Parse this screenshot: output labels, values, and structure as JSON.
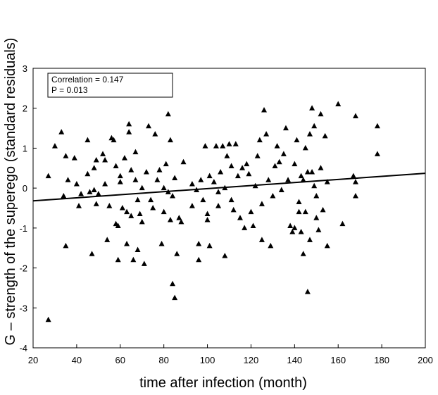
{
  "chart_data": {
    "type": "scatter",
    "xlabel": "time after infection (month)",
    "ylabel": "G – strength of the superego (standard residuals)",
    "xlim": [
      20,
      200
    ],
    "ylim": [
      -4,
      3
    ],
    "x_ticks": [
      "20",
      "40",
      "60",
      "80",
      "100",
      "120",
      "140",
      "160",
      "180",
      "200"
    ],
    "y_ticks": [
      "-4",
      "-3",
      "-2",
      "-1",
      "0",
      "1",
      "2",
      "3"
    ],
    "grid": false,
    "marker": "triangle",
    "marker_color": "#000000",
    "annotation": {
      "line1": "Correlation = 0.147",
      "line2": "P = 0.013",
      "position": "top-left"
    },
    "fit_line": {
      "x": [
        20,
        200
      ],
      "y": [
        -0.32,
        0.37
      ]
    },
    "points": [
      {
        "x": 27,
        "y": 0.3
      },
      {
        "x": 27,
        "y": -3.3
      },
      {
        "x": 30,
        "y": 1.05
      },
      {
        "x": 33,
        "y": 1.4
      },
      {
        "x": 34,
        "y": -0.2
      },
      {
        "x": 35,
        "y": 0.8
      },
      {
        "x": 35,
        "y": -1.45
      },
      {
        "x": 36,
        "y": 0.2
      },
      {
        "x": 39,
        "y": 0.75
      },
      {
        "x": 40,
        "y": 0.1
      },
      {
        "x": 41,
        "y": -0.45
      },
      {
        "x": 42,
        "y": -0.15
      },
      {
        "x": 45,
        "y": 1.2
      },
      {
        "x": 45,
        "y": 0.35
      },
      {
        "x": 46,
        "y": -0.1
      },
      {
        "x": 47,
        "y": -1.65
      },
      {
        "x": 48,
        "y": 0.5
      },
      {
        "x": 48,
        "y": -0.05
      },
      {
        "x": 49,
        "y": 0.7
      },
      {
        "x": 49,
        "y": -0.4
      },
      {
        "x": 50,
        "y": -0.15
      },
      {
        "x": 52,
        "y": 0.85
      },
      {
        "x": 53,
        "y": 0.7
      },
      {
        "x": 53,
        "y": 0.1
      },
      {
        "x": 54,
        "y": -1.3
      },
      {
        "x": 55,
        "y": -0.45
      },
      {
        "x": 56,
        "y": 1.25
      },
      {
        "x": 57,
        "y": 1.2
      },
      {
        "x": 58,
        "y": 0.55
      },
      {
        "x": 58,
        "y": -0.9
      },
      {
        "x": 59,
        "y": -0.95
      },
      {
        "x": 59,
        "y": -1.8
      },
      {
        "x": 60,
        "y": 0.3
      },
      {
        "x": 60,
        "y": 0.15
      },
      {
        "x": 61,
        "y": -0.5
      },
      {
        "x": 62,
        "y": 0.75
      },
      {
        "x": 63,
        "y": -0.6
      },
      {
        "x": 63,
        "y": -1.4
      },
      {
        "x": 64,
        "y": 1.6
      },
      {
        "x": 64,
        "y": 1.4
      },
      {
        "x": 65,
        "y": 0.45
      },
      {
        "x": 65,
        "y": -0.7
      },
      {
        "x": 66,
        "y": -1.8
      },
      {
        "x": 67,
        "y": 0.9
      },
      {
        "x": 67,
        "y": 0.2
      },
      {
        "x": 68,
        "y": -0.3
      },
      {
        "x": 68,
        "y": -1.55
      },
      {
        "x": 69,
        "y": -0.65
      },
      {
        "x": 70,
        "y": 0.0
      },
      {
        "x": 70,
        "y": -0.85
      },
      {
        "x": 71,
        "y": -1.9
      },
      {
        "x": 72,
        "y": 0.4
      },
      {
        "x": 73,
        "y": 1.55
      },
      {
        "x": 74,
        "y": -0.3
      },
      {
        "x": 75,
        "y": -0.5
      },
      {
        "x": 76,
        "y": 1.35
      },
      {
        "x": 77,
        "y": 0.2
      },
      {
        "x": 78,
        "y": 0.45
      },
      {
        "x": 79,
        "y": -1.4
      },
      {
        "x": 80,
        "y": 0.0
      },
      {
        "x": 80,
        "y": -0.6
      },
      {
        "x": 81,
        "y": 0.6
      },
      {
        "x": 82,
        "y": 1.85
      },
      {
        "x": 82,
        "y": -0.1
      },
      {
        "x": 83,
        "y": 1.2
      },
      {
        "x": 83,
        "y": -0.8
      },
      {
        "x": 84,
        "y": -2.4
      },
      {
        "x": 84,
        "y": -0.2
      },
      {
        "x": 85,
        "y": 0.25
      },
      {
        "x": 85,
        "y": -2.75
      },
      {
        "x": 86,
        "y": -1.65
      },
      {
        "x": 87,
        "y": -0.75
      },
      {
        "x": 88,
        "y": -0.85
      },
      {
        "x": 89,
        "y": 0.65
      },
      {
        "x": 93,
        "y": 0.1
      },
      {
        "x": 93,
        "y": -0.45
      },
      {
        "x": 95,
        "y": -0.05
      },
      {
        "x": 96,
        "y": -1.4
      },
      {
        "x": 96,
        "y": -1.8
      },
      {
        "x": 97,
        "y": 0.2
      },
      {
        "x": 98,
        "y": -0.3
      },
      {
        "x": 99,
        "y": 1.05
      },
      {
        "x": 100,
        "y": -0.65
      },
      {
        "x": 100,
        "y": -0.8
      },
      {
        "x": 101,
        "y": 0.3
      },
      {
        "x": 101,
        "y": -1.45
      },
      {
        "x": 103,
        "y": 0.15
      },
      {
        "x": 104,
        "y": 1.05
      },
      {
        "x": 105,
        "y": -0.1
      },
      {
        "x": 105,
        "y": -0.45
      },
      {
        "x": 106,
        "y": 0.4
      },
      {
        "x": 107,
        "y": 1.05
      },
      {
        "x": 108,
        "y": -1.7
      },
      {
        "x": 108,
        "y": 0.0
      },
      {
        "x": 109,
        "y": 0.8
      },
      {
        "x": 110,
        "y": 1.1
      },
      {
        "x": 111,
        "y": 0.55
      },
      {
        "x": 111,
        "y": -0.3
      },
      {
        "x": 112,
        "y": -0.55
      },
      {
        "x": 113,
        "y": 1.1
      },
      {
        "x": 114,
        "y": 0.3
      },
      {
        "x": 115,
        "y": -0.75
      },
      {
        "x": 116,
        "y": 0.5
      },
      {
        "x": 117,
        "y": -1.0
      },
      {
        "x": 118,
        "y": 0.6
      },
      {
        "x": 119,
        "y": 0.35
      },
      {
        "x": 120,
        "y": -0.6
      },
      {
        "x": 121,
        "y": -0.95
      },
      {
        "x": 122,
        "y": 0.05
      },
      {
        "x": 123,
        "y": 0.8
      },
      {
        "x": 124,
        "y": 1.2
      },
      {
        "x": 125,
        "y": -1.3
      },
      {
        "x": 125,
        "y": -0.4
      },
      {
        "x": 126,
        "y": 1.95
      },
      {
        "x": 127,
        "y": 1.35
      },
      {
        "x": 128,
        "y": 0.2
      },
      {
        "x": 129,
        "y": -1.45
      },
      {
        "x": 130,
        "y": -0.2
      },
      {
        "x": 131,
        "y": 0.55
      },
      {
        "x": 132,
        "y": 1.05
      },
      {
        "x": 133,
        "y": 0.65
      },
      {
        "x": 134,
        "y": -0.05
      },
      {
        "x": 135,
        "y": 0.85
      },
      {
        "x": 136,
        "y": 1.5
      },
      {
        "x": 137,
        "y": 0.2
      },
      {
        "x": 138,
        "y": -0.95
      },
      {
        "x": 139,
        "y": -1.1
      },
      {
        "x": 140,
        "y": 0.6
      },
      {
        "x": 140,
        "y": -1.0
      },
      {
        "x": 141,
        "y": 1.2
      },
      {
        "x": 142,
        "y": -0.35
      },
      {
        "x": 142,
        "y": -0.6
      },
      {
        "x": 143,
        "y": 0.3
      },
      {
        "x": 143,
        "y": -1.1
      },
      {
        "x": 144,
        "y": -1.65
      },
      {
        "x": 144,
        "y": 0.2
      },
      {
        "x": 145,
        "y": 1.0
      },
      {
        "x": 145,
        "y": -0.6
      },
      {
        "x": 146,
        "y": -2.6
      },
      {
        "x": 146,
        "y": 0.4
      },
      {
        "x": 147,
        "y": 1.35
      },
      {
        "x": 147,
        "y": -1.3
      },
      {
        "x": 148,
        "y": 2.0
      },
      {
        "x": 148,
        "y": 0.4
      },
      {
        "x": 149,
        "y": 0.05
      },
      {
        "x": 149,
        "y": 1.55
      },
      {
        "x": 150,
        "y": -0.2
      },
      {
        "x": 150,
        "y": -0.75
      },
      {
        "x": 151,
        "y": -1.05
      },
      {
        "x": 152,
        "y": 1.85
      },
      {
        "x": 152,
        "y": 0.5
      },
      {
        "x": 153,
        "y": -0.55
      },
      {
        "x": 154,
        "y": 1.3
      },
      {
        "x": 155,
        "y": 0.15
      },
      {
        "x": 155,
        "y": -1.45
      },
      {
        "x": 160,
        "y": 2.1
      },
      {
        "x": 162,
        "y": -0.9
      },
      {
        "x": 167,
        "y": 0.3
      },
      {
        "x": 168,
        "y": 0.15
      },
      {
        "x": 168,
        "y": -0.2
      },
      {
        "x": 168,
        "y": 1.8
      },
      {
        "x": 178,
        "y": 1.55
      },
      {
        "x": 178,
        "y": 0.85
      }
    ]
  }
}
